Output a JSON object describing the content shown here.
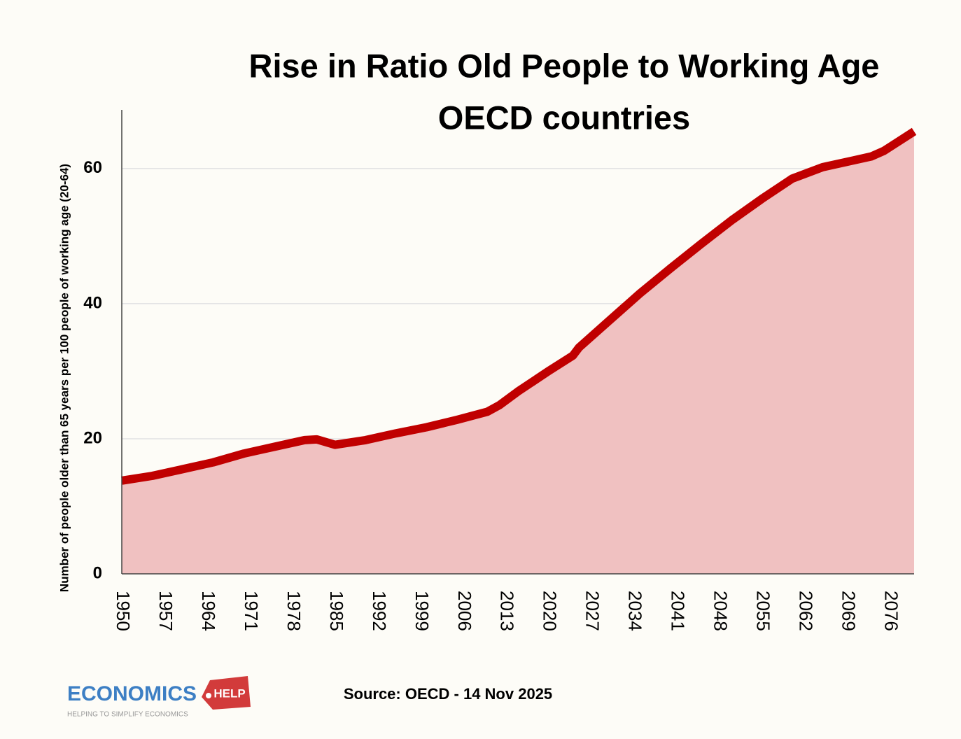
{
  "chart_data": {
    "type": "area",
    "title": [
      "Rise in Ratio Old People to Working Age",
      "OECD countries"
    ],
    "y_label": "Number of people older than 65 years per 100 people of working age (20-64)",
    "source": "Source: OECD - 14 Nov 2025",
    "x": [
      1950,
      1955,
      1960,
      1965,
      1970,
      1975,
      1980,
      1982,
      1985,
      1990,
      1995,
      2000,
      2005,
      2010,
      2012,
      2015,
      2020,
      2024,
      2025,
      2030,
      2035,
      2040,
      2045,
      2050,
      2055,
      2060,
      2065,
      2070,
      2073,
      2075,
      2080
    ],
    "series": [
      {
        "color": "#c00000",
        "fill": "#f0c1c1",
        "values": [
          13.8,
          14.5,
          15.5,
          16.5,
          17.8,
          18.8,
          19.8,
          19.9,
          19.1,
          19.8,
          20.8,
          21.7,
          22.8,
          24.0,
          25.0,
          27.0,
          30.0,
          32.3,
          33.5,
          37.5,
          41.5,
          45.2,
          48.8,
          52.3,
          55.5,
          58.5,
          60.2,
          61.2,
          61.8,
          62.6,
          65.5
        ]
      }
    ],
    "xlim": [
      1950,
      2080
    ],
    "xticks": [
      1950,
      1957,
      1964,
      1971,
      1978,
      1985,
      1992,
      1999,
      2006,
      2013,
      2020,
      2027,
      2034,
      2041,
      2048,
      2055,
      2062,
      2069,
      2076
    ],
    "ylim": [
      0,
      69
    ],
    "yticks": [
      0,
      20,
      40,
      60
    ],
    "grid": true
  },
  "logo": {
    "name": "ECONOMICS",
    "tag": "HELP",
    "tagline": "HELPING TO SIMPLIFY ECONOMICS"
  }
}
